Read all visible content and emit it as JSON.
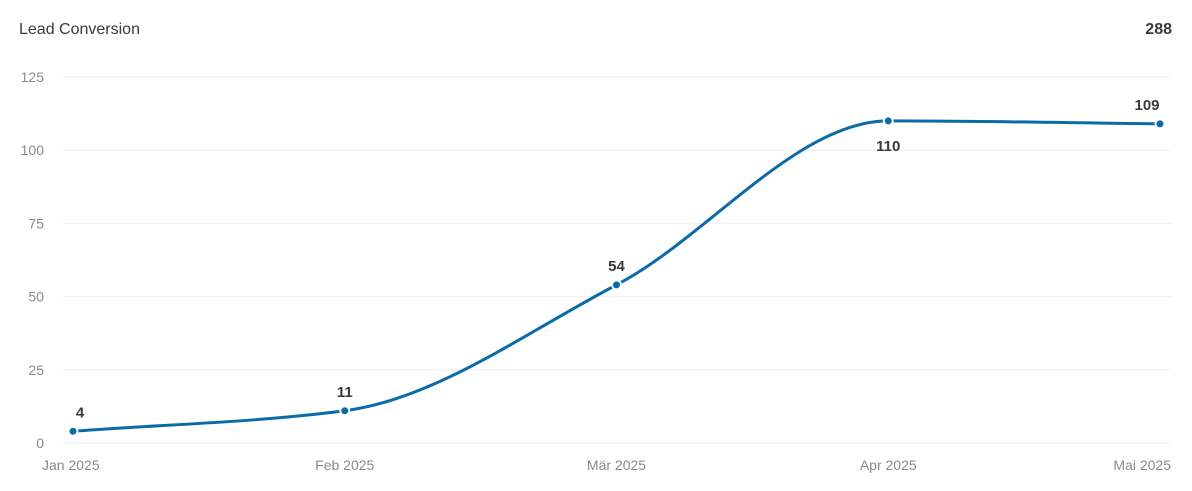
{
  "header": {
    "title": "Lead Conversion",
    "total": "288"
  },
  "chart_data": {
    "type": "line",
    "title": "Lead Conversion",
    "categories": [
      "Jan 2025",
      "Feb 2025",
      "Mär 2025",
      "Apr 2025",
      "Mai 2025"
    ],
    "series": [
      {
        "values": [
          4,
          11,
          54,
          110,
          109
        ],
        "color": "#0b6aa8"
      }
    ],
    "ylim": [
      0,
      125
    ],
    "yticks": [
      0,
      25,
      50,
      75,
      100,
      125
    ],
    "grid": true,
    "legend": "none",
    "smooth": true,
    "data_labels": true
  }
}
